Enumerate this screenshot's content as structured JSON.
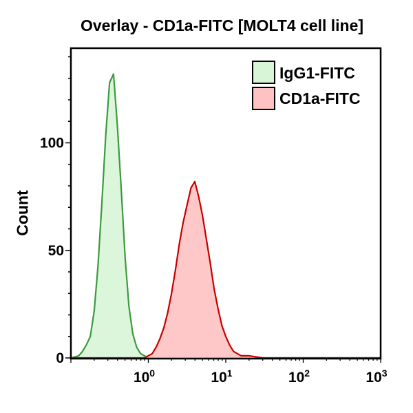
{
  "chart_data": {
    "type": "area",
    "title": "Overlay - CD1a-FITC [MOLT4 cell line]",
    "xlabel": "",
    "ylabel": "Count",
    "x_scale": "log",
    "xlim": [
      0.1,
      1000
    ],
    "ylim": [
      0,
      144
    ],
    "x_ticks": [
      {
        "base": "10",
        "exp": "0",
        "value": 1
      },
      {
        "base": "10",
        "exp": "1",
        "value": 10
      },
      {
        "base": "10",
        "exp": "2",
        "value": 100
      },
      {
        "base": "10",
        "exp": "3",
        "value": 1000
      }
    ],
    "y_ticks": [
      {
        "label": "0",
        "value": 0
      },
      {
        "label": "50",
        "value": 50
      },
      {
        "label": "100",
        "value": 100
      }
    ],
    "grid": false,
    "legend_position": "top-right",
    "series": [
      {
        "name": "IgG1-FITC",
        "fill": "#d8f5d8",
        "stroke": "#3c9a3c",
        "x": [
          0.1,
          0.126,
          0.141,
          0.158,
          0.178,
          0.2,
          0.224,
          0.251,
          0.282,
          0.316,
          0.355,
          0.398,
          0.447,
          0.501,
          0.562,
          0.631,
          0.708,
          0.794,
          0.891,
          1.0,
          1000
        ],
        "y": [
          0,
          1,
          3,
          6,
          10,
          22,
          43,
          72,
          104,
          128,
          132,
          108,
          78,
          47,
          24,
          11,
          5,
          2,
          1,
          0,
          0
        ]
      },
      {
        "name": "CD1a-FITC",
        "fill": "#ffc2c2",
        "stroke": "#c40000",
        "x": [
          0.1,
          0.9,
          1.0,
          1.122,
          1.259,
          1.413,
          1.585,
          1.778,
          1.995,
          2.239,
          2.512,
          2.818,
          3.162,
          3.548,
          3.981,
          4.467,
          5.012,
          5.623,
          6.31,
          7.079,
          7.943,
          8.913,
          10,
          11.22,
          12.59,
          14.13,
          15.85,
          20,
          30,
          1000
        ],
        "y": [
          0,
          0,
          1,
          2,
          5,
          9,
          14,
          21,
          30,
          41,
          53,
          63,
          71,
          79,
          82,
          75,
          66,
          55,
          44,
          32,
          23,
          15,
          10,
          6,
          3,
          2,
          1,
          1,
          0,
          0
        ]
      }
    ]
  }
}
